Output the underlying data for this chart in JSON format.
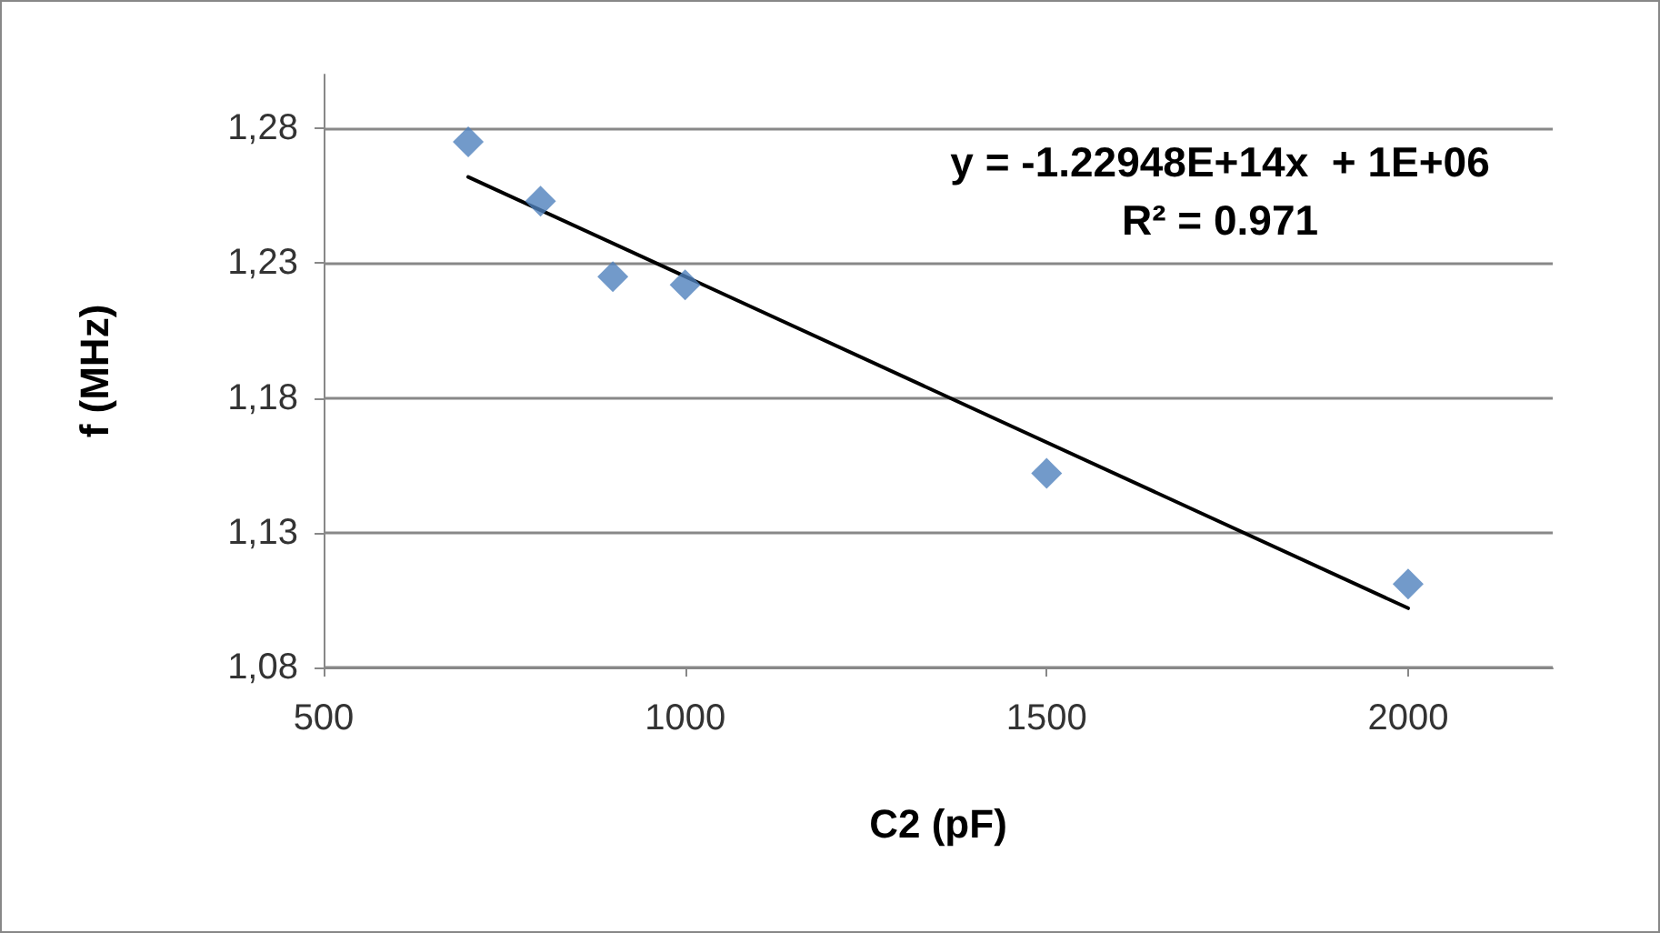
{
  "chart_data": {
    "type": "scatter",
    "xlabel": "C2 (pF)",
    "ylabel": "f (MHz)",
    "x": [
      700,
      800,
      900,
      1000,
      1500,
      2000
    ],
    "series": [
      {
        "color": "#4f81bd",
        "marker": "diamond",
        "values": [
          1.275,
          1.253,
          1.225,
          1.222,
          1.152,
          1.111
        ]
      },
      {
        "type": "line",
        "color": "#000000",
        "marker": "none",
        "line_style": "solid",
        "x": [
          700,
          2000
        ],
        "values": [
          1.262,
          1.102
        ]
      }
    ],
    "xlim": [
      500,
      2200
    ],
    "xticks": [
      500,
      1000,
      1500,
      2000
    ],
    "ylim": [
      1.08,
      1.3
    ],
    "yticks": [
      {
        "value": 1.08,
        "label": "1,08"
      },
      {
        "value": 1.13,
        "label": "1,13"
      },
      {
        "value": 1.18,
        "label": "1,18"
      },
      {
        "value": 1.23,
        "label": "1,23"
      },
      {
        "value": 1.28,
        "label": "1,28"
      }
    ],
    "grid": "y",
    "annotations": [
      "y = -1.22948E+14x  + 1E+06\nR² = 0.971"
    ]
  }
}
